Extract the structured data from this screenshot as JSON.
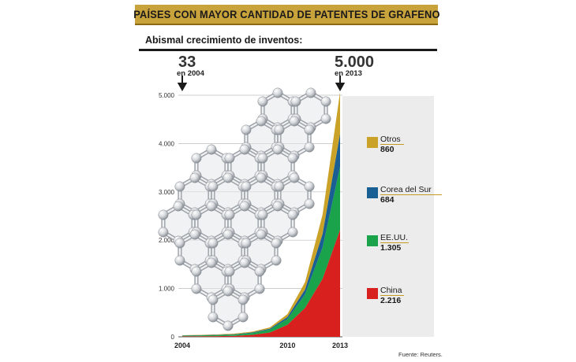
{
  "header": {
    "title": "PAÍSES CON MAYOR CANTIDAD DE PATENTES DE GRAFENO",
    "subtitle": "Abismal crecimiento de inventos:"
  },
  "annotations": {
    "start": {
      "value": "33",
      "caption": "en 2004"
    },
    "end": {
      "value": "5.000",
      "caption": "en 2013"
    }
  },
  "source": "Fuente: Reuters.",
  "colors": {
    "title_bar": "#c8a23a",
    "otros": "#c9a227",
    "corea": "#1a5f94",
    "eeuu": "#1aa34a",
    "china": "#d8201e"
  },
  "chart_data": {
    "type": "area",
    "stacked": true,
    "x": [
      2004,
      2005,
      2006,
      2007,
      2008,
      2009,
      2010,
      2011,
      2012,
      2013
    ],
    "x_tick_labels": [
      "2004",
      "2010",
      "2013"
    ],
    "y_tick_labels": [
      "0",
      "1.000",
      "2.000",
      "3.000",
      "4.000",
      "5.000"
    ],
    "y_ticks": [
      0,
      1000,
      2000,
      3000,
      4000,
      5000
    ],
    "ylim": [
      0,
      5000
    ],
    "grid": true,
    "legend_position": "right",
    "series": [
      {
        "name": "China",
        "value_label": "2.216",
        "color": "#d8201e",
        "values": [
          10,
          12,
          15,
          20,
          40,
          90,
          250,
          600,
          1200,
          2216
        ]
      },
      {
        "name": "EE.UU.",
        "value_label": "1.305",
        "color": "#1aa34a",
        "values": [
          15,
          18,
          22,
          28,
          40,
          60,
          120,
          280,
          650,
          1305
        ]
      },
      {
        "name": "Corea del Sur",
        "value_label": "684",
        "color": "#1a5f94",
        "values": [
          3,
          4,
          6,
          8,
          12,
          20,
          40,
          100,
          280,
          684
        ]
      },
      {
        "name": "Otros",
        "value_label": "860",
        "color": "#c9a227",
        "values": [
          5,
          6,
          8,
          10,
          15,
          25,
          60,
          150,
          400,
          860
        ]
      }
    ]
  }
}
